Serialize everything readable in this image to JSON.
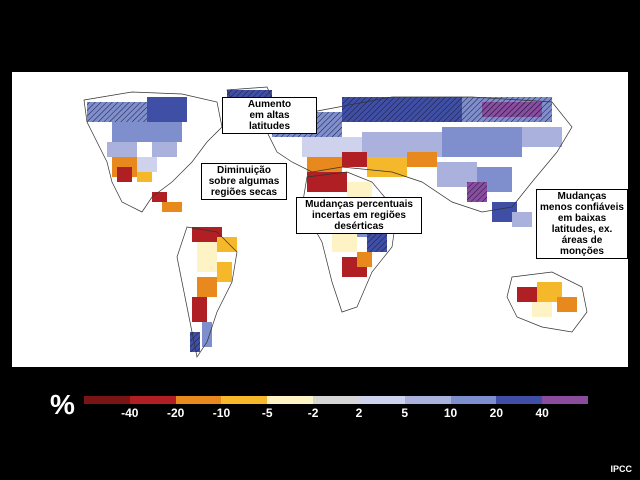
{
  "map": {
    "annotations": [
      {
        "id": "high-latitudes",
        "text": "Aumento\nem altas\nlatitudes"
      },
      {
        "id": "dry-regions",
        "text": "Diminuição\nsobre algumas\nregiões secas"
      },
      {
        "id": "desert-regions",
        "text": "Mudanças percentuais\nincertas em regiões\ndesérticas"
      },
      {
        "id": "low-latitudes",
        "text": "Mudanças\nmenos confiáveis\nem baixas\nlatitudes, ex.\náreas de monções"
      }
    ]
  },
  "legend": {
    "unit": "%",
    "colors": [
      "#7a1515",
      "#b01f24",
      "#e8891e",
      "#f5b82a",
      "#fdf3c4",
      "#d6d6d6",
      "#cfd2ec",
      "#a9b1dc",
      "#7f8fcd",
      "#3f4fa6",
      "#8a4c9e"
    ],
    "ticks": [
      "-40",
      "-20",
      "-10",
      "-5",
      "-2",
      "2",
      "5",
      "10",
      "20",
      "40"
    ]
  },
  "credit": "IPCC"
}
